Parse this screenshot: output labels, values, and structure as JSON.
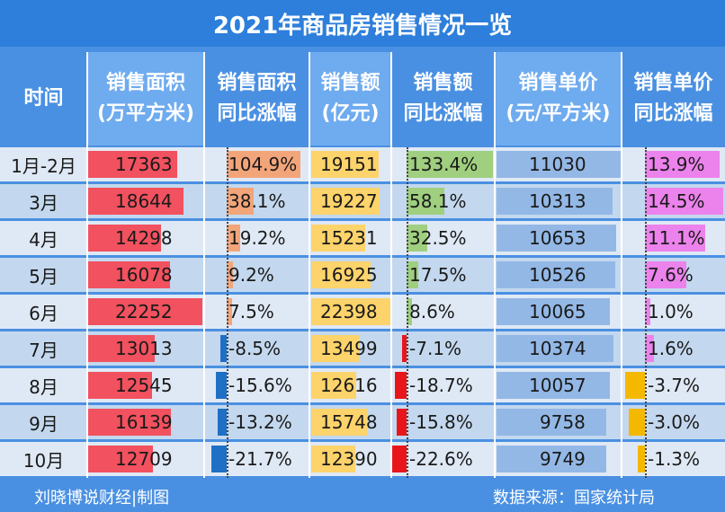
{
  "title": "2021年商品房销售情况一览",
  "headers": [
    {
      "line1": "时间",
      "line2": ""
    },
    {
      "line1": "销售面积",
      "line2": "(万平方米)"
    },
    {
      "line1": "销售面积",
      "line2": "同比涨幅"
    },
    {
      "line1": "销售额",
      "line2": "(亿元)"
    },
    {
      "line1": "销售额",
      "line2": "同比涨幅"
    },
    {
      "line1": "销售单价",
      "line2": "(元/平方米)"
    },
    {
      "line1": "销售单价",
      "line2": "同比涨幅"
    }
  ],
  "footer": {
    "left": "刘晓博说财经|制图",
    "right": "数据来源：国家统计局"
  },
  "colors": {
    "area": "#f2515f",
    "sales": "#fdd36b",
    "price": "#93b8e6",
    "area_growth": "#f3a57a",
    "sales_growth": "#9fcf7f",
    "price_growth": "#ec82ec",
    "negative_area": "#1f6fc5",
    "negative_sales": "#e8161b",
    "negative_price": "#f5b800"
  },
  "chart_data": {
    "type": "table",
    "categories": [
      "1月-2月",
      "3月",
      "4月",
      "5月",
      "6月",
      "7月",
      "8月",
      "9月",
      "10月"
    ],
    "series": [
      {
        "name": "销售面积(万平方米)",
        "values": [
          17363,
          18644,
          14298,
          16078,
          22252,
          13013,
          12545,
          16139,
          12709
        ]
      },
      {
        "name": "销售面积同比涨幅",
        "values": [
          104.9,
          38.1,
          19.2,
          9.2,
          7.5,
          -8.5,
          -15.6,
          -13.2,
          -21.7
        ]
      },
      {
        "name": "销售额(亿元)",
        "values": [
          19151,
          19227,
          15231,
          16925,
          22398,
          13499,
          12616,
          15748,
          12390
        ]
      },
      {
        "name": "销售额同比涨幅",
        "values": [
          133.4,
          58.1,
          32.5,
          17.5,
          8.6,
          -7.1,
          -18.7,
          -15.8,
          -22.6
        ]
      },
      {
        "name": "销售单价(元/平方米)",
        "values": [
          11030,
          10313,
          10653,
          10526,
          10065,
          10374,
          10057,
          9758,
          9749
        ]
      },
      {
        "name": "销售单价同比涨幅",
        "values": [
          13.9,
          14.5,
          11.1,
          7.6,
          1.0,
          1.6,
          -3.7,
          -3.0,
          -1.3
        ]
      }
    ]
  },
  "labels": {
    "area": [
      "17363",
      "18644",
      "14298",
      "16078",
      "22252",
      "13013",
      "12545",
      "16139",
      "12709"
    ],
    "area_growth": [
      "104.9%",
      "38.1%",
      "19.2%",
      "9.2%",
      "7.5%",
      "-8.5%",
      "-15.6%",
      "-13.2%",
      "-21.7%"
    ],
    "sales": [
      "19151",
      "19227",
      "15231",
      "16925",
      "22398",
      "13499",
      "12616",
      "15748",
      "12390"
    ],
    "sales_growth": [
      "133.4%",
      "58.1%",
      "32.5%",
      "17.5%",
      "8.6%",
      "-7.1%",
      "-18.7%",
      "-15.8%",
      "-22.6%"
    ],
    "price": [
      "11030",
      "10313",
      "10653",
      "10526",
      "10065",
      "10374",
      "10057",
      "9758",
      "9749"
    ],
    "price_growth": [
      "13.9%",
      "14.5%",
      "11.1%",
      "7.6%",
      "1.0%",
      "1.6%",
      "-3.7%",
      "-3.0%",
      "-1.3%"
    ]
  }
}
